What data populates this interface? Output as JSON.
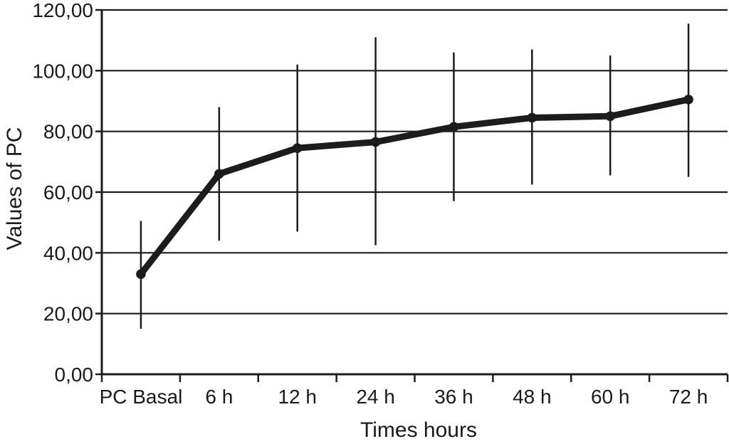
{
  "chart_data": {
    "type": "line",
    "title": "",
    "xlabel": "Times hours",
    "ylabel": "Values of PC",
    "categories": [
      "PC Basal",
      "6 h",
      "12 h",
      "24 h",
      "36 h",
      "48 h",
      "60 h",
      "72 h"
    ],
    "series": [
      {
        "name": "PC",
        "values": [
          33,
          66,
          74.5,
          76.5,
          81.5,
          84.5,
          85,
          90.5
        ],
        "error_low": [
          15,
          44,
          47,
          42.5,
          57,
          62.5,
          65.5,
          65
        ],
        "error_high": [
          50.5,
          88,
          102,
          111,
          106,
          107,
          105,
          115.5
        ]
      }
    ],
    "ylim": [
      0,
      120
    ],
    "y_ticks": [
      0,
      20,
      40,
      60,
      80,
      100,
      120
    ],
    "y_tick_labels": [
      "0,00",
      "20,00",
      "40,00",
      "60,00",
      "80,00",
      "100,00",
      "120,00"
    ],
    "grid": true,
    "legend": "none",
    "line_color": "#1c1c1c",
    "grid_color": "#1c1c1c",
    "axis_color": "#1c1c1c",
    "background_color": "#ffffff",
    "marker": "circle"
  }
}
